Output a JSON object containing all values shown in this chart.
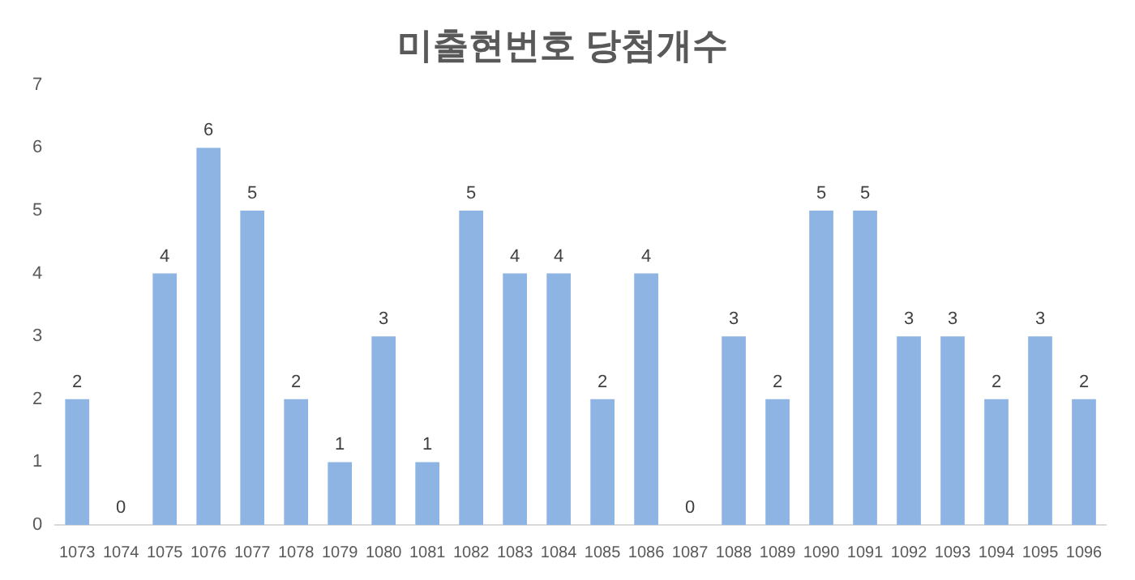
{
  "chart_data": {
    "type": "bar",
    "title": "미출현번호 당첨개수",
    "categories": [
      "1073",
      "1074",
      "1075",
      "1076",
      "1077",
      "1078",
      "1079",
      "1080",
      "1081",
      "1082",
      "1083",
      "1084",
      "1085",
      "1086",
      "1087",
      "1088",
      "1089",
      "1090",
      "1091",
      "1092",
      "1093",
      "1094",
      "1095",
      "1096"
    ],
    "values": [
      2,
      0,
      4,
      6,
      5,
      2,
      1,
      3,
      1,
      5,
      4,
      4,
      2,
      4,
      0,
      3,
      2,
      5,
      5,
      3,
      3,
      2,
      3,
      2
    ],
    "color": "#8eb4e3",
    "ylim": [
      0,
      7
    ],
    "yticks": [
      0,
      1,
      2,
      3,
      4,
      5,
      6,
      7
    ],
    "grid": false,
    "data_labels": true
  }
}
